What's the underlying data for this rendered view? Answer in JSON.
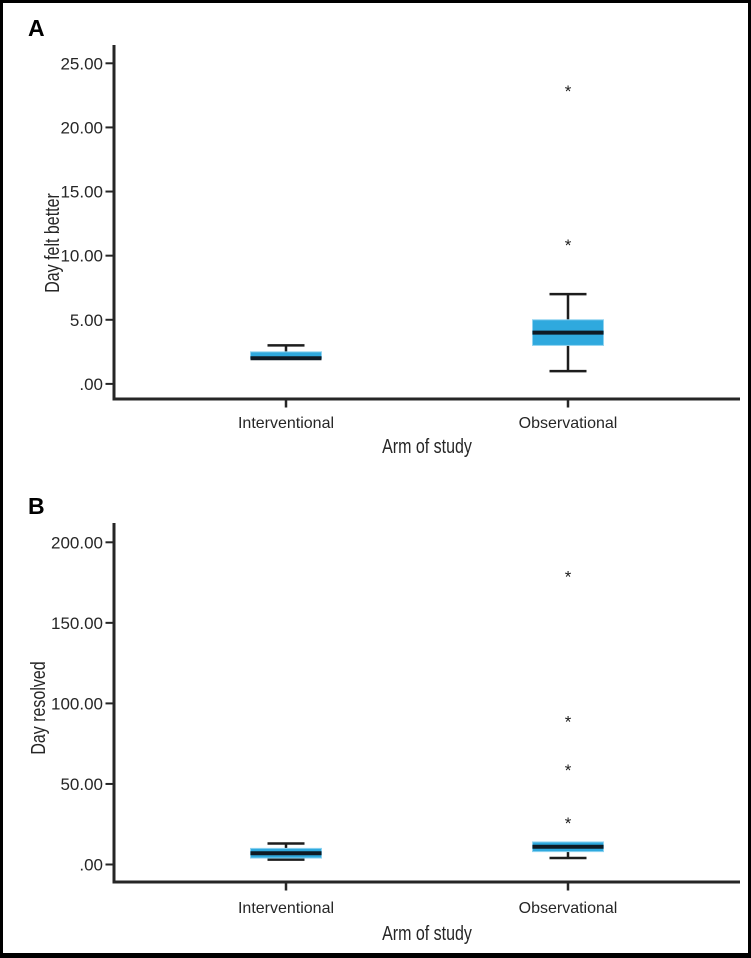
{
  "figure": {
    "kind": "two-panel box plot figure",
    "panels": [
      {
        "label": "A"
      },
      {
        "label": "B"
      }
    ]
  },
  "colors": {
    "box_fill": "#2FA9DE",
    "box_edge": "#8FD3F0",
    "median_line": "#0E1A24",
    "whisker": "#1d1d1d",
    "axis": "#262626",
    "text": "#262626",
    "outlier": "#1d1d1d",
    "background": "#ffffff",
    "border": "#000000"
  },
  "chart_data": [
    {
      "type": "boxplot",
      "panel": "A",
      "title": "",
      "ylabel": "Day felt better",
      "xlabel": "Arm of study",
      "categories": [
        "Interventional",
        "Observational"
      ],
      "ytick_labels": [
        ".00",
        "5.00",
        "10.00",
        "15.00",
        "20.00",
        "25.00"
      ],
      "ytick_values": [
        0,
        5,
        10,
        15,
        20,
        25
      ],
      "ylim": [
        0,
        26.4
      ],
      "grid": false,
      "legend": false,
      "boxes": [
        {
          "category": "Interventional",
          "min": 2,
          "q1": 2,
          "median": 2,
          "q3": 2.5,
          "max": 3,
          "outliers": []
        },
        {
          "category": "Observational",
          "min": 1,
          "q1": 3,
          "median": 4,
          "q3": 5,
          "max": 7,
          "outliers": [
            11,
            23
          ]
        }
      ]
    },
    {
      "type": "boxplot",
      "panel": "B",
      "title": "",
      "ylabel": "Day resolved",
      "xlabel": "Arm of study",
      "categories": [
        "Interventional",
        "Observational"
      ],
      "ytick_labels": [
        ".00",
        "50.00",
        "100.00",
        "150.00",
        "200.00"
      ],
      "ytick_values": [
        0,
        50,
        100,
        150,
        200
      ],
      "ylim": [
        0,
        212
      ],
      "grid": false,
      "legend": false,
      "boxes": [
        {
          "category": "Interventional",
          "min": 3,
          "q1": 4,
          "median": 7,
          "q3": 10,
          "max": 13,
          "outliers": []
        },
        {
          "category": "Observational",
          "min": 4,
          "q1": 8,
          "median": 11,
          "q3": 14,
          "max": 14,
          "outliers": [
            27,
            60,
            90,
            180
          ]
        }
      ]
    }
  ]
}
